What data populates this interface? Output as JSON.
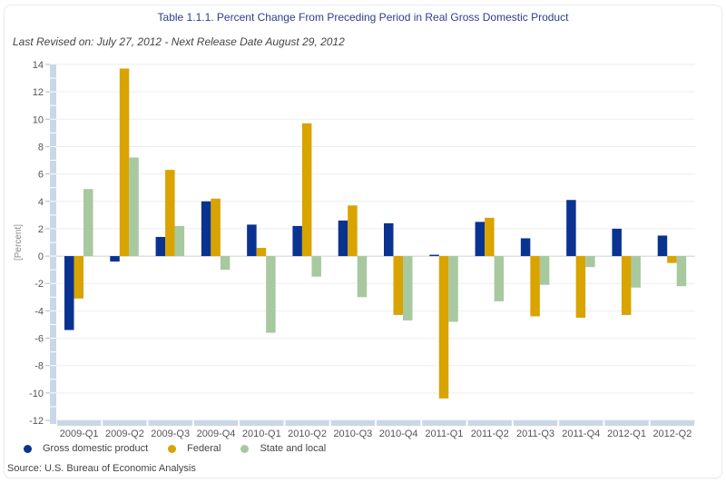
{
  "header": {
    "title": "Table 1.1.1. Percent Change From Preceding Period in Real Gross Domestic Product",
    "subtitle": "Last Revised on: July 27, 2012 - Next Release Date August 29, 2012"
  },
  "footer": {
    "source": "Source: U.S. Bureau of Economic  Analysis"
  },
  "colors": {
    "gdp": "#0a3391",
    "federal": "#d9a300",
    "state_local": "#a8c8a0",
    "axis_band": "#c9d7e6",
    "grid": "#eeeeee",
    "title": "#2b3f8c"
  },
  "chart_data": {
    "type": "bar",
    "title": "Table 1.1.1. Percent Change From Preceding Period in Real Gross Domestic Product",
    "xlabel": "",
    "ylabel": "[Percent]",
    "ylim": [
      -12,
      14
    ],
    "yticks": [
      14,
      12,
      10,
      8,
      6,
      4,
      2,
      0,
      -2,
      -4,
      -6,
      -8,
      -10,
      -12
    ],
    "grid": true,
    "legend_position": "bottom-left",
    "categories": [
      "2009-Q1",
      "2009-Q2",
      "2009-Q3",
      "2009-Q4",
      "2010-Q1",
      "2010-Q2",
      "2010-Q3",
      "2010-Q4",
      "2011-Q1",
      "2011-Q2",
      "2011-Q3",
      "2011-Q4",
      "2012-Q1",
      "2012-Q2"
    ],
    "series": [
      {
        "name": "Gross domestic product",
        "key": "gdp",
        "values": [
          -5.4,
          -0.4,
          1.4,
          4.0,
          2.3,
          2.2,
          2.6,
          2.4,
          0.1,
          2.5,
          1.3,
          4.1,
          2.0,
          1.5
        ]
      },
      {
        "name": "Federal",
        "key": "federal",
        "values": [
          -3.1,
          13.7,
          6.3,
          4.2,
          0.6,
          9.7,
          3.7,
          -4.3,
          -10.4,
          2.8,
          -4.4,
          -4.5,
          -4.3,
          -0.5
        ]
      },
      {
        "name": "State and local",
        "key": "state_local",
        "values": [
          4.9,
          7.2,
          2.2,
          -1.0,
          -5.6,
          -1.5,
          -3.0,
          -4.7,
          -4.8,
          -3.3,
          -2.1,
          -0.8,
          -2.3,
          -2.2
        ]
      }
    ]
  }
}
